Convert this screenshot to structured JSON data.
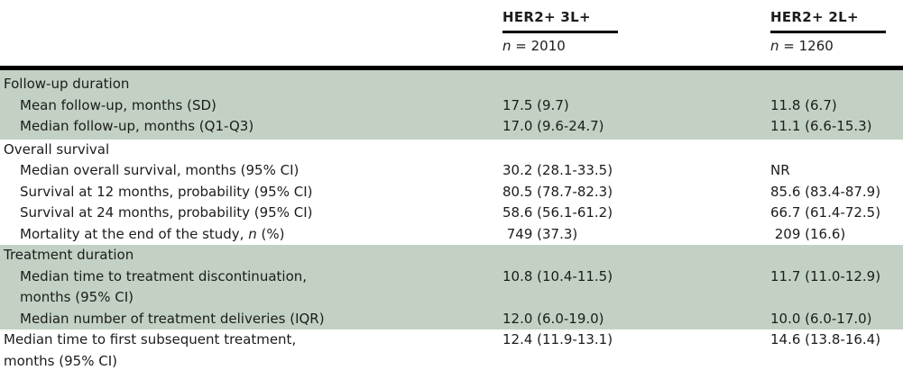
{
  "header": {
    "col2": {
      "title": "HER2+ 3L+",
      "n": "n",
      "count": " = 2010"
    },
    "col3": {
      "title": "HER2+ 2L+",
      "n": "n",
      "count": " = 1260"
    }
  },
  "table": {
    "sections": [
      {
        "bg": "green",
        "rows": [
          {
            "section": true,
            "runs": [
              {
                "t": "Follow-up duration"
              }
            ],
            "v1": "",
            "v2": ""
          },
          {
            "indent": true,
            "runs": [
              {
                "t": "Mean follow-up, months (SD)"
              }
            ],
            "v1": "17.5 (9.7)",
            "v2": "11.8 (6.7)"
          },
          {
            "indent": true,
            "runs": [
              {
                "t": "Median follow-up, months (Q1-Q3)"
              }
            ],
            "v1": "17.0 (9.6-24.7)",
            "v2": "11.1 (6.6-15.3)"
          }
        ]
      },
      {
        "bg": "white",
        "rows": [
          {
            "section": true,
            "runs": [
              {
                "t": "Overall survival"
              }
            ],
            "v1": "",
            "v2": ""
          },
          {
            "indent": true,
            "runs": [
              {
                "t": "Median overall survival, months (95% CI)"
              }
            ],
            "v1": "30.2 (28.1-33.5)",
            "v2": "NR"
          },
          {
            "indent": true,
            "runs": [
              {
                "t": "Survival at 12 months, probability (95% CI)"
              }
            ],
            "v1": "80.5 (78.7-82.3)",
            "v2": "85.6 (83.4-87.9)"
          },
          {
            "indent": true,
            "runs": [
              {
                "t": "Survival at 24 months, probability (95% CI)"
              }
            ],
            "v1": "58.6 (56.1-61.2)",
            "v2": "66.7 (61.4-72.5)"
          },
          {
            "indent": true,
            "runs": [
              {
                "t": "Mortality at the end of the study, "
              },
              {
                "t": "n",
                "i": true
              },
              {
                "t": " (%)"
              }
            ],
            "v1": " 749 (37.3)",
            "v2": " 209 (16.6)"
          }
        ]
      },
      {
        "bg": "green",
        "rows": [
          {
            "section": true,
            "runs": [
              {
                "t": "Treatment duration"
              }
            ],
            "v1": "",
            "v2": ""
          },
          {
            "indent": true,
            "runs": [
              {
                "t": "Median time to treatment discontinuation,\nmonths (95% CI)"
              }
            ],
            "v1": "10.8 (10.4-11.5)",
            "v2": "11.7 (11.0-12.9)"
          },
          {
            "indent": true,
            "runs": [
              {
                "t": "Median number of treatment deliveries (IQR)"
              }
            ],
            "v1": "12.0 (6.0-19.0)",
            "v2": "10.0 (6.0-17.0)"
          }
        ]
      },
      {
        "bg": "white",
        "rows": [
          {
            "runs": [
              {
                "t": "Median time to first subsequent treatment,\nmonths (95% CI)"
              }
            ],
            "v1": "12.4 (11.9-13.1)",
            "v2": "14.6 (13.8-16.4)"
          }
        ]
      }
    ]
  },
  "colors": {
    "shade": "#c2d1c4",
    "rule": "#000000",
    "text": "#1c1c1c"
  }
}
